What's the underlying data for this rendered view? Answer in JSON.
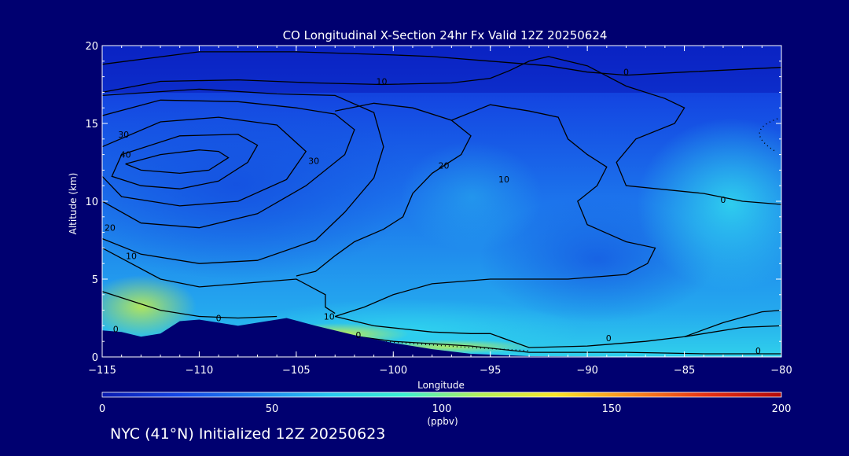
{
  "chart_data": {
    "type": "heatmap",
    "title": "CO Longitudinal X-Section 24hr  Fx Valid 12Z 20250624",
    "xlabel": "Longitude",
    "ylabel": "Altitude (km)",
    "xlim": [
      -115,
      -80
    ],
    "ylim": [
      0,
      20
    ],
    "x_ticks": [
      -115,
      -110,
      -105,
      -100,
      -95,
      -90,
      -85,
      -80
    ],
    "x_tick_labels": [
      "−115",
      "−110",
      "−105",
      "−100",
      "−95",
      "−90",
      "−85",
      "−80"
    ],
    "y_ticks": [
      0,
      5,
      10,
      15,
      20
    ],
    "y_tick_labels": [
      "0",
      "5",
      "10",
      "15",
      "20"
    ],
    "colorbar": {
      "ticks": [
        0,
        50,
        100,
        150,
        200
      ],
      "tick_labels": [
        "0",
        "50",
        "100",
        "150",
        "200"
      ],
      "unit": "(ppbv)",
      "colors": [
        "#0a1ab0",
        "#1446e6",
        "#1e82f0",
        "#28c8f0",
        "#3cf0d2",
        "#b4f05a",
        "#fae628",
        "#fa8c1e",
        "#e63214",
        "#b40a0a"
      ]
    },
    "contour_labels": [
      {
        "text": "10",
        "lon": -113.5,
        "alt": 6.3
      },
      {
        "text": "20",
        "lon": -114.6,
        "alt": 8.1
      },
      {
        "text": "30",
        "lon": -104.1,
        "alt": 12.4
      },
      {
        "text": "30",
        "lon": -113.9,
        "alt": 14.1
      },
      {
        "text": "40",
        "lon": -113.8,
        "alt": 12.8
      },
      {
        "text": "20",
        "lon": -97.4,
        "alt": 12.1
      },
      {
        "text": "10",
        "lon": -100.6,
        "alt": 17.5
      },
      {
        "text": "10",
        "lon": -94.3,
        "alt": 11.2
      },
      {
        "text": "0",
        "lon": -88.0,
        "alt": 18.1
      },
      {
        "text": "0",
        "lon": -83.0,
        "alt": 9.9
      },
      {
        "text": "10",
        "lon": -103.3,
        "alt": 2.4
      },
      {
        "text": "0",
        "lon": -101.8,
        "alt": 1.2
      },
      {
        "text": "0",
        "lon": -109.0,
        "alt": 2.3
      },
      {
        "text": "0",
        "lon": -114.3,
        "alt": 1.6
      },
      {
        "text": "0",
        "lon": -88.9,
        "alt": 1.0
      },
      {
        "text": "0",
        "lon": -81.2,
        "alt": 0.2
      }
    ],
    "footer": "NYC (41°N) Initialized 12Z 20250623"
  }
}
